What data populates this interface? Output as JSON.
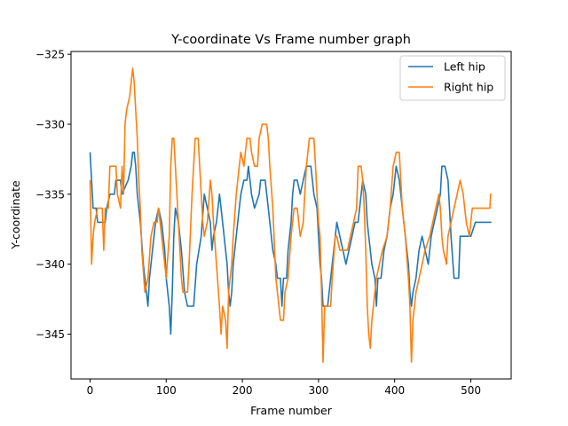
{
  "chart_data": {
    "type": "line",
    "title": "Y-coordinate Vs Frame number graph",
    "xlabel": "Frame number",
    "ylabel": "Y-coordinate",
    "xlim": [
      -25,
      553
    ],
    "ylim": [
      -348.2,
      -324.8
    ],
    "xticks": [
      0,
      100,
      200,
      300,
      400,
      500
    ],
    "yticks": [
      -345,
      -340,
      -335,
      -330,
      -325
    ],
    "xtick_labels": [
      "0",
      "100",
      "200",
      "300",
      "400",
      "500"
    ],
    "ytick_labels": [
      "−345",
      "−340",
      "−335",
      "−330",
      "−325"
    ],
    "grid": false,
    "legend_position": "upper right",
    "series": [
      {
        "name": "Left hip",
        "color": "#1f77b4",
        "points": [
          [
            0,
            -332
          ],
          [
            2,
            -334
          ],
          [
            4,
            -336
          ],
          [
            8,
            -336
          ],
          [
            10,
            -337
          ],
          [
            20,
            -337
          ],
          [
            22,
            -336
          ],
          [
            26,
            -335
          ],
          [
            32,
            -335
          ],
          [
            34,
            -334
          ],
          [
            40,
            -334
          ],
          [
            42,
            -335
          ],
          [
            50,
            -334
          ],
          [
            54,
            -333
          ],
          [
            56,
            -332
          ],
          [
            58,
            -332
          ],
          [
            60,
            -333
          ],
          [
            62,
            -335
          ],
          [
            66,
            -337
          ],
          [
            70,
            -340
          ],
          [
            74,
            -342
          ],
          [
            76,
            -343
          ],
          [
            78,
            -341
          ],
          [
            82,
            -339
          ],
          [
            86,
            -337
          ],
          [
            90,
            -336
          ],
          [
            94,
            -337
          ],
          [
            98,
            -339
          ],
          [
            100,
            -341
          ],
          [
            104,
            -343
          ],
          [
            106,
            -345
          ],
          [
            108,
            -342
          ],
          [
            110,
            -338
          ],
          [
            112,
            -336
          ],
          [
            116,
            -337
          ],
          [
            120,
            -339
          ],
          [
            124,
            -342
          ],
          [
            128,
            -343
          ],
          [
            136,
            -343
          ],
          [
            140,
            -340
          ],
          [
            146,
            -338
          ],
          [
            150,
            -335
          ],
          [
            154,
            -336
          ],
          [
            158,
            -337
          ],
          [
            160,
            -339
          ],
          [
            162,
            -338
          ],
          [
            166,
            -337
          ],
          [
            170,
            -335
          ],
          [
            172,
            -336
          ],
          [
            176,
            -338
          ],
          [
            180,
            -340
          ],
          [
            182,
            -342
          ],
          [
            184,
            -343
          ],
          [
            186,
            -342
          ],
          [
            188,
            -340
          ],
          [
            192,
            -338
          ],
          [
            196,
            -336
          ],
          [
            198,
            -335
          ],
          [
            202,
            -334
          ],
          [
            206,
            -334
          ],
          [
            208,
            -333
          ],
          [
            212,
            -335
          ],
          [
            216,
            -336
          ],
          [
            222,
            -335
          ],
          [
            224,
            -334
          ],
          [
            230,
            -334
          ],
          [
            234,
            -336
          ],
          [
            240,
            -339
          ],
          [
            244,
            -340
          ],
          [
            246,
            -341
          ],
          [
            250,
            -341
          ],
          [
            252,
            -343
          ],
          [
            254,
            -341
          ],
          [
            258,
            -341
          ],
          [
            260,
            -339
          ],
          [
            264,
            -337
          ],
          [
            266,
            -335
          ],
          [
            268,
            -334
          ],
          [
            272,
            -334
          ],
          [
            276,
            -335
          ],
          [
            280,
            -334
          ],
          [
            284,
            -333
          ],
          [
            290,
            -333
          ],
          [
            294,
            -335
          ],
          [
            298,
            -336
          ],
          [
            300,
            -338
          ],
          [
            302,
            -340
          ],
          [
            304,
            -341
          ],
          [
            306,
            -343
          ],
          [
            308,
            -343
          ],
          [
            312,
            -343
          ],
          [
            316,
            -341
          ],
          [
            320,
            -339
          ],
          [
            324,
            -337
          ],
          [
            328,
            -338
          ],
          [
            332,
            -339
          ],
          [
            336,
            -340
          ],
          [
            340,
            -339
          ],
          [
            344,
            -338
          ],
          [
            348,
            -337
          ],
          [
            352,
            -337
          ],
          [
            354,
            -336
          ],
          [
            358,
            -334
          ],
          [
            362,
            -335
          ],
          [
            364,
            -337
          ],
          [
            366,
            -338
          ],
          [
            370,
            -340
          ],
          [
            374,
            -341
          ],
          [
            376,
            -343
          ],
          [
            378,
            -341
          ],
          [
            382,
            -341
          ],
          [
            386,
            -339
          ],
          [
            390,
            -338
          ],
          [
            394,
            -336
          ],
          [
            398,
            -335
          ],
          [
            402,
            -333
          ],
          [
            406,
            -334
          ],
          [
            410,
            -336
          ],
          [
            414,
            -338
          ],
          [
            418,
            -340
          ],
          [
            420,
            -342
          ],
          [
            422,
            -343
          ],
          [
            424,
            -342
          ],
          [
            428,
            -341
          ],
          [
            432,
            -339
          ],
          [
            436,
            -338
          ],
          [
            440,
            -339
          ],
          [
            444,
            -340
          ],
          [
            448,
            -338
          ],
          [
            452,
            -337
          ],
          [
            456,
            -336
          ],
          [
            460,
            -335
          ],
          [
            462,
            -333
          ],
          [
            466,
            -333
          ],
          [
            470,
            -334
          ],
          [
            472,
            -336
          ],
          [
            474,
            -338
          ],
          [
            478,
            -341
          ],
          [
            484,
            -341
          ],
          [
            486,
            -338
          ],
          [
            488,
            -338
          ],
          [
            490,
            -338
          ],
          [
            500,
            -338
          ],
          [
            506,
            -337
          ],
          [
            527,
            -337
          ]
        ]
      },
      {
        "name": "Right hip",
        "color": "#ff7f0e",
        "points": [
          [
            0,
            -334
          ],
          [
            2,
            -340
          ],
          [
            4,
            -338
          ],
          [
            6,
            -337
          ],
          [
            10,
            -336
          ],
          [
            16,
            -336
          ],
          [
            18,
            -339
          ],
          [
            20,
            -336
          ],
          [
            24,
            -336
          ],
          [
            26,
            -333
          ],
          [
            30,
            -333
          ],
          [
            34,
            -333
          ],
          [
            36,
            -335
          ],
          [
            40,
            -336
          ],
          [
            42,
            -333
          ],
          [
            44,
            -335
          ],
          [
            46,
            -330
          ],
          [
            48,
            -329
          ],
          [
            52,
            -328
          ],
          [
            54,
            -327
          ],
          [
            56,
            -326
          ],
          [
            58,
            -327
          ],
          [
            60,
            -329
          ],
          [
            62,
            -331
          ],
          [
            64,
            -334
          ],
          [
            66,
            -336
          ],
          [
            68,
            -339
          ],
          [
            72,
            -342
          ],
          [
            76,
            -341
          ],
          [
            80,
            -338
          ],
          [
            84,
            -337
          ],
          [
            88,
            -337
          ],
          [
            90,
            -336
          ],
          [
            92,
            -337
          ],
          [
            96,
            -339
          ],
          [
            98,
            -340
          ],
          [
            100,
            -341
          ],
          [
            104,
            -338
          ],
          [
            106,
            -333
          ],
          [
            108,
            -331
          ],
          [
            110,
            -331
          ],
          [
            112,
            -333
          ],
          [
            114,
            -335
          ],
          [
            116,
            -337
          ],
          [
            118,
            -339
          ],
          [
            120,
            -341
          ],
          [
            122,
            -342
          ],
          [
            128,
            -342
          ],
          [
            130,
            -340
          ],
          [
            134,
            -335
          ],
          [
            138,
            -331
          ],
          [
            142,
            -331
          ],
          [
            144,
            -333
          ],
          [
            148,
            -337
          ],
          [
            150,
            -338
          ],
          [
            154,
            -337
          ],
          [
            158,
            -334
          ],
          [
            160,
            -335
          ],
          [
            162,
            -337
          ],
          [
            166,
            -340
          ],
          [
            170,
            -343
          ],
          [
            172,
            -345
          ],
          [
            174,
            -343
          ],
          [
            178,
            -344
          ],
          [
            180,
            -346
          ],
          [
            182,
            -342
          ],
          [
            186,
            -340
          ],
          [
            188,
            -338
          ],
          [
            192,
            -335
          ],
          [
            196,
            -333
          ],
          [
            198,
            -332
          ],
          [
            202,
            -333
          ],
          [
            206,
            -331
          ],
          [
            210,
            -331
          ],
          [
            212,
            -332
          ],
          [
            216,
            -333
          ],
          [
            220,
            -333
          ],
          [
            222,
            -331
          ],
          [
            226,
            -330
          ],
          [
            232,
            -330
          ],
          [
            234,
            -331
          ],
          [
            236,
            -333
          ],
          [
            240,
            -336
          ],
          [
            244,
            -341
          ],
          [
            248,
            -343
          ],
          [
            250,
            -344
          ],
          [
            254,
            -344
          ],
          [
            256,
            -342
          ],
          [
            260,
            -341
          ],
          [
            264,
            -338
          ],
          [
            268,
            -336
          ],
          [
            272,
            -336
          ],
          [
            276,
            -338
          ],
          [
            280,
            -337
          ],
          [
            282,
            -335
          ],
          [
            284,
            -333
          ],
          [
            288,
            -331
          ],
          [
            294,
            -331
          ],
          [
            296,
            -333
          ],
          [
            300,
            -337
          ],
          [
            302,
            -338
          ],
          [
            304,
            -342
          ],
          [
            306,
            -347
          ],
          [
            308,
            -343
          ],
          [
            312,
            -343
          ],
          [
            316,
            -343
          ],
          [
            318,
            -341
          ],
          [
            322,
            -338
          ],
          [
            324,
            -338
          ],
          [
            328,
            -339
          ],
          [
            332,
            -339
          ],
          [
            338,
            -339
          ],
          [
            342,
            -338
          ],
          [
            346,
            -337
          ],
          [
            350,
            -336
          ],
          [
            352,
            -333
          ],
          [
            356,
            -333
          ],
          [
            358,
            -334
          ],
          [
            360,
            -336
          ],
          [
            362,
            -339
          ],
          [
            364,
            -343
          ],
          [
            366,
            -345
          ],
          [
            368,
            -346
          ],
          [
            370,
            -344
          ],
          [
            372,
            -343
          ],
          [
            374,
            -342
          ],
          [
            376,
            -341
          ],
          [
            380,
            -340
          ],
          [
            384,
            -339
          ],
          [
            390,
            -338
          ],
          [
            394,
            -336
          ],
          [
            398,
            -333
          ],
          [
            402,
            -332
          ],
          [
            406,
            -332
          ],
          [
            408,
            -334
          ],
          [
            410,
            -336
          ],
          [
            414,
            -338
          ],
          [
            418,
            -341
          ],
          [
            420,
            -343
          ],
          [
            422,
            -347
          ],
          [
            424,
            -344
          ],
          [
            428,
            -342
          ],
          [
            432,
            -341
          ],
          [
            436,
            -340
          ],
          [
            440,
            -339
          ],
          [
            446,
            -338
          ],
          [
            450,
            -337
          ],
          [
            454,
            -336
          ],
          [
            458,
            -335
          ],
          [
            460,
            -336
          ],
          [
            462,
            -338
          ],
          [
            464,
            -339
          ],
          [
            468,
            -340
          ],
          [
            470,
            -338
          ],
          [
            474,
            -337
          ],
          [
            478,
            -336
          ],
          [
            482,
            -335
          ],
          [
            486,
            -334
          ],
          [
            490,
            -335
          ],
          [
            494,
            -337
          ],
          [
            498,
            -338
          ],
          [
            502,
            -336
          ],
          [
            510,
            -336
          ],
          [
            525,
            -336
          ],
          [
            526,
            -335
          ],
          [
            527,
            -335
          ]
        ]
      }
    ]
  }
}
